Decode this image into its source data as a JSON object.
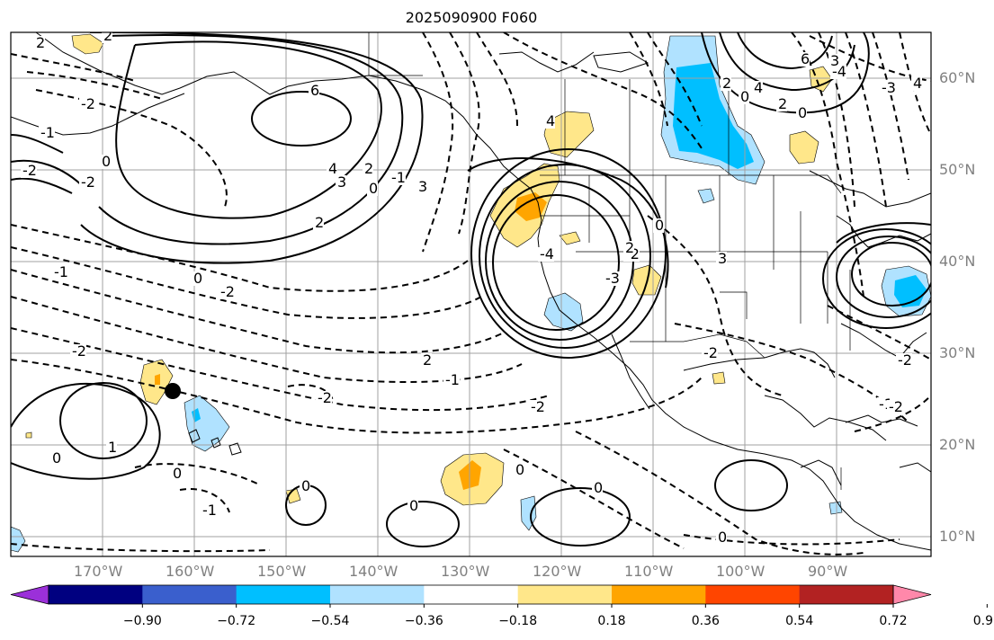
{
  "title": "2025090900 F060",
  "latitude_labels": [
    "60°N",
    "50°N",
    "40°N",
    "30°N",
    "20°N",
    "10°N"
  ],
  "longitude_labels": [
    "170°W",
    "160°W",
    "150°W",
    "140°W",
    "130°W",
    "120°W",
    "110°W",
    "100°W",
    "90°W"
  ],
  "contour_labels": [
    "2",
    "2",
    "-2",
    "-1",
    "6",
    "4",
    "3",
    "2",
    "0",
    "-1",
    "3",
    "-2",
    "0",
    "-2",
    "2",
    "0",
    "-2",
    "-1",
    "-2",
    "0",
    "1",
    "0",
    "-1",
    "0",
    "0",
    "0",
    "0",
    "-4",
    "-3",
    "-2",
    "0",
    "2",
    "3",
    "4",
    "-2",
    "-1",
    "-2",
    "2",
    "-1",
    "-2",
    "0",
    "-2",
    "6",
    "4",
    "2",
    "0",
    "-4",
    "-3",
    "4",
    "2",
    "3",
    "0",
    "-2"
  ],
  "colorbar": {
    "tick_labels": [
      "−0.90",
      "−0.72",
      "−0.54",
      "−0.36",
      "−0.18",
      "0.18",
      "0.36",
      "0.54",
      "0.72",
      "0.90"
    ],
    "colors": [
      "#9b30d9",
      "#000080",
      "#3a5fcd",
      "#00bfff",
      "#b0e2ff",
      "#ffffff",
      "#ffe78a",
      "#ffa500",
      "#ff4500",
      "#b22222",
      "#ff88aa"
    ]
  },
  "marker": "black-dot"
}
